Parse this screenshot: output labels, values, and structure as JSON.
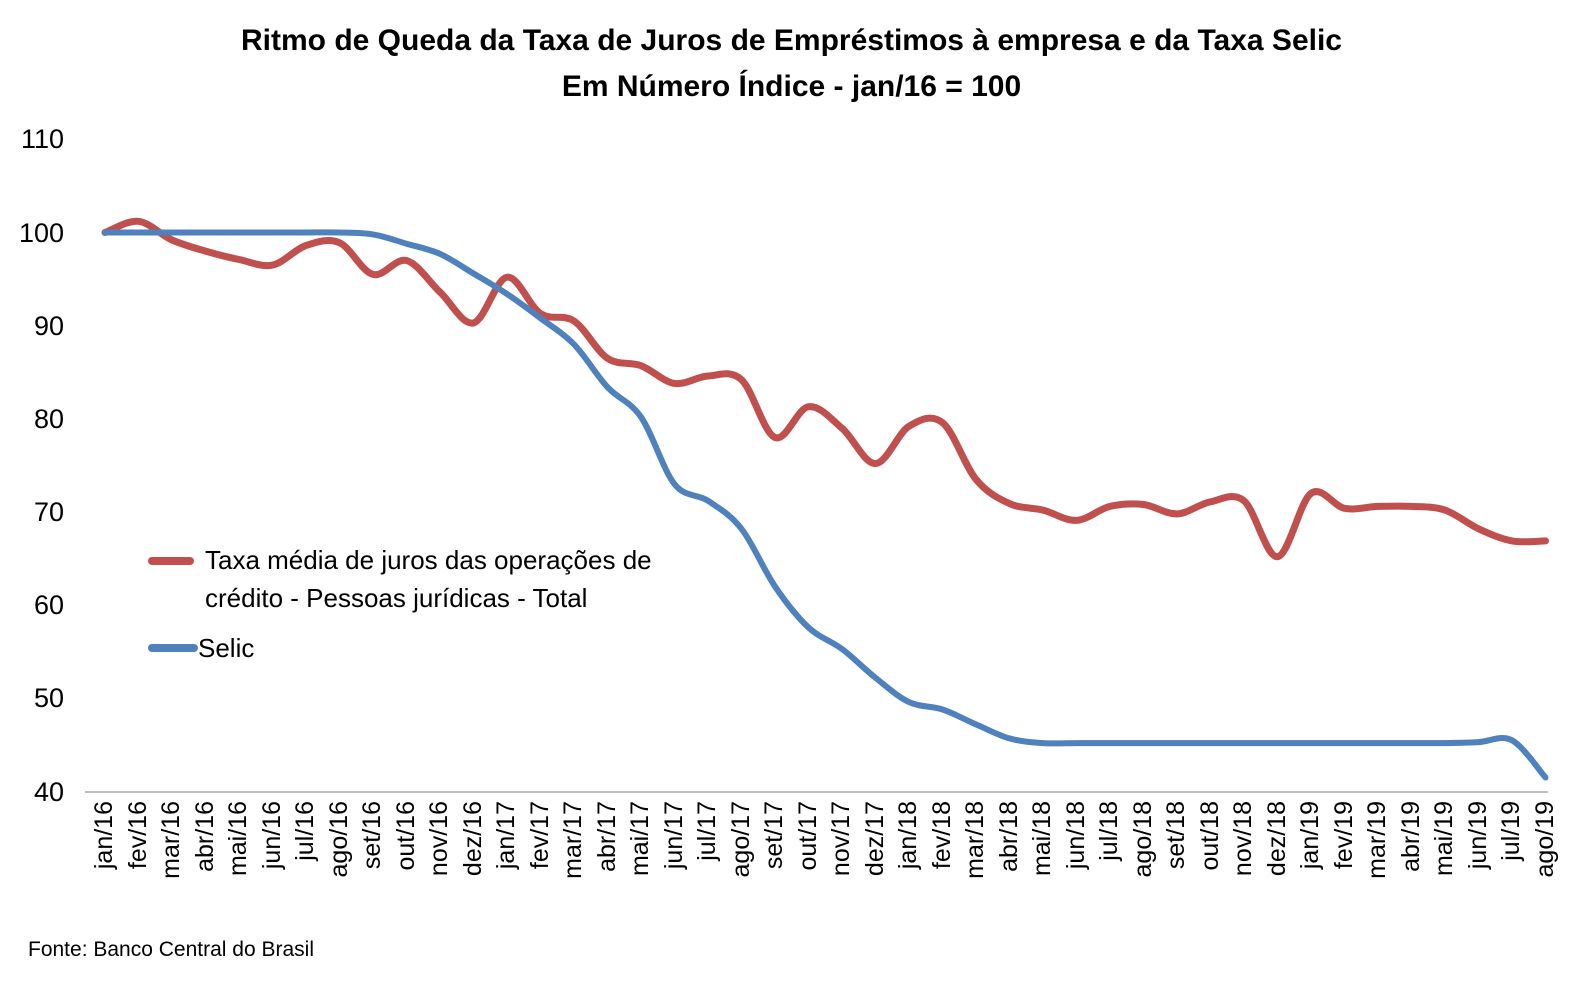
{
  "title_line1": "Ritmo de Queda da Taxa de Juros de Empréstimos à empresa e da Taxa Selic",
  "title_line2": "Em Número Índice - jan/16 = 100",
  "source_note": "Fonte: Banco Central do Brasil",
  "legend": {
    "series1_line1": "Taxa média de juros das operações de",
    "series1_line2": "crédito - Pessoas jurídicas - Total",
    "series2": "Selic"
  },
  "colors": {
    "series1_red": "#C0504D",
    "series2_blue": "#4F81BD",
    "axis_gray": "#BFBFBF",
    "text_black": "#000000"
  },
  "chart_data": {
    "type": "line",
    "title": "Ritmo de Queda da Taxa de Juros de Empréstimos à empresa e da Taxa Selic - Em Número Índice - jan/16 = 100",
    "xlabel": "",
    "ylabel": "",
    "ylim": [
      40,
      110
    ],
    "yticks": [
      110,
      100,
      90,
      80,
      70,
      60,
      50,
      40
    ],
    "grid": false,
    "smooth": true,
    "legend_position": "inside-left",
    "categories": [
      "jan/16",
      "fev/16",
      "mar/16",
      "abr/16",
      "mai/16",
      "jun/16",
      "jul/16",
      "ago/16",
      "set/16",
      "out/16",
      "nov/16",
      "dez/16",
      "jan/17",
      "fev/17",
      "mar/17",
      "abr/17",
      "mai/17",
      "jun/17",
      "jul/17",
      "ago/17",
      "set/17",
      "out/17",
      "nov/17",
      "dez/17",
      "jan/18",
      "fev/18",
      "mar/18",
      "abr/18",
      "mai/18",
      "jun/18",
      "jul/18",
      "ago/18",
      "set/18",
      "out/18",
      "nov/18",
      "dez/18",
      "jan/19",
      "fev/19",
      "mar/19",
      "abr/19",
      "mai/19",
      "jun/19",
      "jul/19",
      "ago/19"
    ],
    "series": [
      {
        "name": "Taxa média de juros das operações de crédito - Pessoas jurídicas - Total",
        "color": "#C0504D",
        "stroke_width": 7,
        "values": [
          100.0,
          101.2,
          99.2,
          98.0,
          97.1,
          96.5,
          98.6,
          98.9,
          95.5,
          97.0,
          93.6,
          90.3,
          95.2,
          91.3,
          90.5,
          86.5,
          85.7,
          83.8,
          84.6,
          84.2,
          78.0,
          81.3,
          79.0,
          75.2,
          79.2,
          79.6,
          73.5,
          70.9,
          70.2,
          69.1,
          70.6,
          70.8,
          69.8,
          71.1,
          71.2,
          65.2,
          72.0,
          70.4,
          70.6,
          70.6,
          70.2,
          68.2,
          66.9,
          66.9
        ]
      },
      {
        "name": "Selic",
        "color": "#4F81BD",
        "stroke_width": 6,
        "values": [
          100.0,
          100.0,
          100.0,
          100.0,
          100.0,
          100.0,
          100.0,
          100.0,
          99.8,
          98.8,
          97.7,
          95.6,
          93.4,
          90.8,
          88.0,
          83.4,
          80.2,
          73.0,
          71.2,
          68.2,
          62.0,
          57.6,
          55.3,
          52.2,
          49.6,
          48.8,
          47.2,
          45.7,
          45.2,
          45.2,
          45.2,
          45.2,
          45.2,
          45.2,
          45.2,
          45.2,
          45.2,
          45.2,
          45.2,
          45.2,
          45.2,
          45.3,
          45.5,
          41.5
        ]
      }
    ]
  }
}
